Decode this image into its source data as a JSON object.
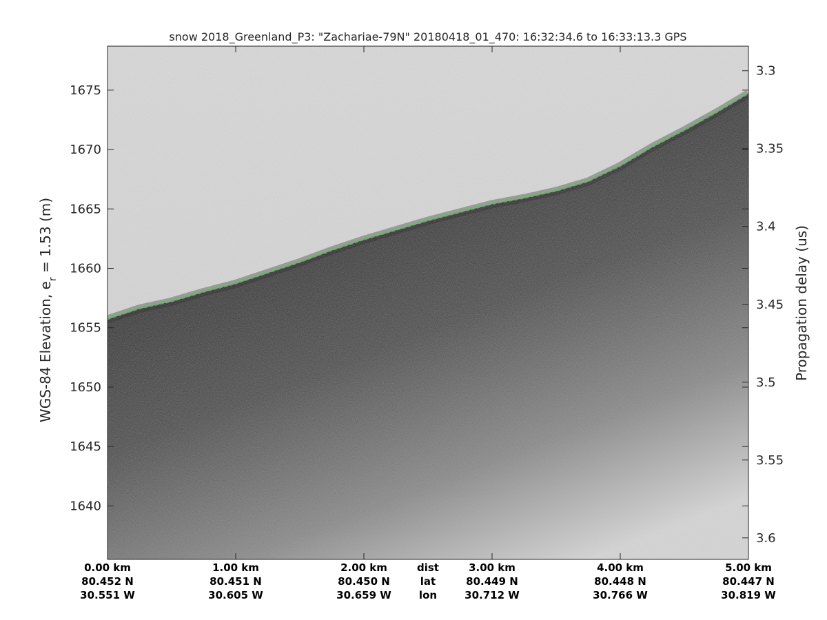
{
  "chart_data": {
    "type": "radar-echogram",
    "title": "snow 2018_Greenland_P3: \"Zachariae-79N\"  20180418_01_470: 16:32:34.6 to 16:33:13.3 GPS",
    "ylabel_left": {
      "prefix": "WGS-84 Elevation, e",
      "subscript": "r",
      "suffix": " = 1.53 (m)"
    },
    "ylabel_right": "Propagation delay (us)",
    "ylim_left": [
      1635.5,
      1678.7
    ],
    "ylim_right": [
      3.2842,
      3.6138
    ],
    "xlim_km": [
      0,
      5
    ],
    "grid": false,
    "colormap": "gray",
    "yticks_left": [
      1640,
      1645,
      1650,
      1655,
      1660,
      1665,
      1670,
      1675
    ],
    "yticks_right": [
      3.3,
      3.35,
      3.4,
      3.45,
      3.5,
      3.55,
      3.6
    ],
    "ytick_labels_right": [
      "3.3",
      "3.35",
      "3.4",
      "3.45",
      "3.5",
      "3.55",
      "3.6"
    ],
    "bottom_axis": {
      "rows": [
        {
          "name": "dist",
          "positions_km": [
            0,
            1,
            2,
            3,
            4,
            5
          ],
          "labels": [
            "0.00 km",
            "1.00 km",
            "2.00 km",
            "3.00 km",
            "4.00 km",
            "5.00 km"
          ]
        },
        {
          "name": "lat",
          "positions_km": [
            0,
            1,
            2,
            3,
            4,
            5
          ],
          "labels": [
            "80.452 N",
            "80.451 N",
            "80.450 N",
            "80.449 N",
            "80.448 N",
            "80.447 N"
          ]
        },
        {
          "name": "lon",
          "positions_km": [
            0,
            1,
            2,
            3,
            4,
            5
          ],
          "labels": [
            "30.551 W",
            "30.605 W",
            "30.659 W",
            "30.712 W",
            "30.766 W",
            "30.819 W"
          ]
        }
      ],
      "row_names_at_km": 2.5
    },
    "surface_series": {
      "name": "",
      "color": "#2bd12b",
      "x_km": [
        0,
        0.25,
        0.5,
        0.75,
        1.0,
        1.25,
        1.5,
        1.75,
        2.0,
        2.25,
        2.5,
        2.75,
        3.0,
        3.25,
        3.5,
        3.75,
        4.0,
        4.25,
        4.5,
        4.75,
        5.0
      ],
      "elevation_m": [
        1655.7,
        1656.6,
        1657.2,
        1658.0,
        1658.7,
        1659.6,
        1660.5,
        1661.5,
        1662.4,
        1663.2,
        1664.0,
        1664.7,
        1665.4,
        1665.9,
        1666.5,
        1667.3,
        1668.6,
        1670.2,
        1671.6,
        1673.1,
        1674.7
      ]
    }
  }
}
